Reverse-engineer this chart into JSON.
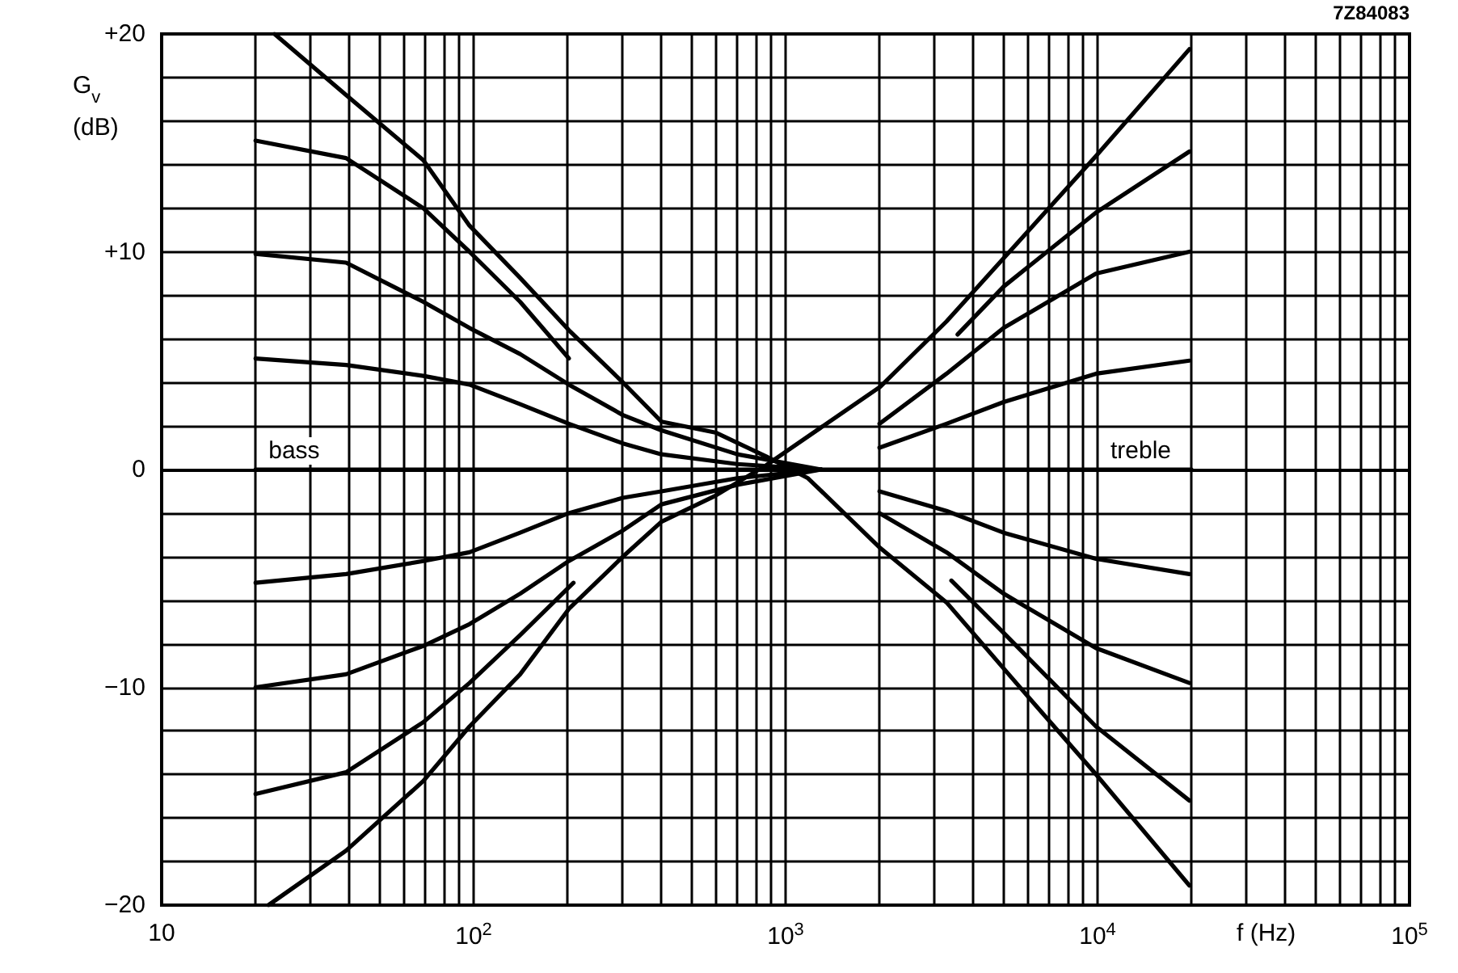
{
  "chart_data": {
    "type": "line",
    "xlabel": "f (Hz)",
    "ylabel": "G$_{v}$ (dB)",
    "annotations": [
      {
        "text": "bass",
        "x": 20,
        "y": 0
      },
      {
        "text": "treble",
        "x": 10000,
        "y": 0
      },
      "7Z84083"
    ],
    "log": "x",
    "grid": true,
    "marker": "none",
    "line_style": "solid",
    "xlim": [
      10,
      100000
    ],
    "ylim": [
      -20,
      20
    ],
    "xticks": [
      {
        "value": 10,
        "label": "10"
      },
      {
        "value": 20,
        "label": null
      },
      {
        "value": 30,
        "label": null
      },
      {
        "value": 40,
        "label": null
      },
      {
        "value": 50,
        "label": null
      },
      {
        "value": 60,
        "label": null
      },
      {
        "value": 70,
        "label": null
      },
      {
        "value": 80,
        "label": null
      },
      {
        "value": 90,
        "label": null
      },
      {
        "value": 100,
        "label": "10$^{2}$"
      },
      {
        "value": 200,
        "label": null
      },
      {
        "value": 300,
        "label": null
      },
      {
        "value": 400,
        "label": null
      },
      {
        "value": 500,
        "label": null
      },
      {
        "value": 600,
        "label": null
      },
      {
        "value": 700,
        "label": null
      },
      {
        "value": 800,
        "label": null
      },
      {
        "value": 900,
        "label": null
      },
      {
        "value": 1000,
        "label": "10$^{3}$"
      },
      {
        "value": 2000,
        "label": null
      },
      {
        "value": 3000,
        "label": null
      },
      {
        "value": 4000,
        "label": null
      },
      {
        "value": 5000,
        "label": null
      },
      {
        "value": 6000,
        "label": null
      },
      {
        "value": 7000,
        "label": null
      },
      {
        "value": 8000,
        "label": null
      },
      {
        "value": 9000,
        "label": null
      },
      {
        "value": 10000,
        "label": "10$^{4}$"
      },
      {
        "value": 20000,
        "label": null
      },
      {
        "value": 30000,
        "label": null
      },
      {
        "value": 40000,
        "label": null
      },
      {
        "value": 50000,
        "label": null
      },
      {
        "value": 60000,
        "label": null
      },
      {
        "value": 70000,
        "label": null
      },
      {
        "value": 80000,
        "label": null
      },
      {
        "value": 90000,
        "label": null
      },
      {
        "value": 100000,
        "label": "10$^{5}$"
      }
    ],
    "yticks": [
      {
        "value": -20,
        "label": "−20"
      },
      {
        "value": -18,
        "label": null
      },
      {
        "value": -16,
        "label": null
      },
      {
        "value": -14,
        "label": null
      },
      {
        "value": -12,
        "label": null
      },
      {
        "value": -10,
        "label": "−10"
      },
      {
        "value": -8,
        "label": null
      },
      {
        "value": -6,
        "label": null
      },
      {
        "value": -4,
        "label": null
      },
      {
        "value": -2,
        "label": null
      },
      0,
      {
        "value": 2,
        "label": null
      },
      {
        "value": 4,
        "label": null
      },
      {
        "value": 6,
        "label": null
      },
      {
        "value": 8,
        "label": null
      },
      {
        "value": 10,
        "label": "+10"
      },
      {
        "value": 12,
        "label": null
      },
      {
        "value": 14,
        "label": null
      },
      {
        "value": 16,
        "label": null
      },
      {
        "value": 18,
        "label": null
      },
      {
        "value": 20,
        "label": "+20"
      }
    ],
    "series": [
      {
        "color": "#000000",
        "x": [
          23,
          39,
          69,
          97,
          141,
          202,
          301,
          400,
          596,
          867,
          1180,
          2010,
          3280,
          5800,
          9890,
          19700
        ],
        "values": [
          20,
          17.2,
          14.2,
          11.2,
          8.8,
          6.4,
          4,
          2.2,
          1.7,
          0.6,
          -0.4,
          -3.6,
          -6.1,
          -10.2,
          -14,
          -19.1
        ]
      },
      {
        "color": "#000000",
        "x": [
          22,
          39,
          69,
          97,
          141,
          202,
          301,
          400,
          596,
          867,
          2010,
          3280,
          9890,
          19700
        ],
        "values": [
          -20,
          -17.5,
          -14.3,
          -11.8,
          -9.4,
          -6.4,
          -4,
          -2.4,
          -1.2,
          0.2,
          3.8,
          6.8,
          14.4,
          19.3
        ]
      },
      {
        "color": "#000000",
        "x": [
          20,
          39,
          69,
          97,
          141,
          202
        ],
        "values": [
          15.1,
          14.3,
          12,
          10,
          7.7,
          5.1
        ]
      },
      {
        "color": "#000000",
        "x": [
          20,
          39,
          69,
          97,
          141,
          209
        ],
        "values": [
          -14.9,
          -13.9,
          -11.6,
          -9.8,
          -7.6,
          -5.2
        ]
      },
      {
        "color": "#000000",
        "x": [
          20,
          39,
          69,
          97,
          141,
          202,
          301,
          400,
          700,
          1300
        ],
        "values": [
          9.9,
          9.5,
          7.7,
          6.5,
          5.3,
          3.9,
          2.5,
          1.8,
          0.7,
          0
        ]
      },
      {
        "color": "#000000",
        "x": [
          20,
          39,
          69,
          97,
          141,
          202,
          301,
          400,
          700,
          1300
        ],
        "values": [
          5.1,
          4.8,
          4.3,
          3.9,
          3,
          2.1,
          1.2,
          0.7,
          0.25,
          0
        ]
      },
      {
        "color": "#000000",
        "x": [
          20,
          39,
          69,
          97,
          141,
          202,
          301,
          400,
          700,
          1300
        ],
        "values": [
          -5.2,
          -4.8,
          -4.2,
          -3.8,
          -2.9,
          -2,
          -1.3,
          -1,
          -0.4,
          0
        ]
      },
      {
        "color": "#000000",
        "x": [
          20,
          39,
          69,
          97,
          141,
          202,
          301,
          400,
          700,
          1300
        ],
        "values": [
          -10,
          -9.4,
          -8.1,
          -7.1,
          -5.7,
          -4.2,
          -2.8,
          -1.6,
          -0.7,
          0
        ]
      },
      {
        "color": "#000000",
        "x": [
          20,
          20000
        ],
        "values": [
          0,
          0
        ]
      },
      {
        "color": "#000000",
        "x": [
          3560,
          5000,
          9890,
          19700
        ],
        "values": [
          6.2,
          8.4,
          11.8,
          14.6
        ]
      },
      {
        "color": "#000000",
        "x": [
          3400,
          5000,
          9890,
          19700
        ],
        "values": [
          -5.1,
          -7.5,
          -11.8,
          -15.2
        ]
      },
      {
        "color": "#000000",
        "x": [
          2000,
          3280,
          5000,
          9890,
          19700
        ],
        "values": [
          2.1,
          4.4,
          6.5,
          9,
          10
        ]
      },
      {
        "color": "#000000",
        "x": [
          2000,
          3280,
          5000,
          9890,
          19700
        ],
        "values": [
          1,
          2.1,
          3.1,
          4.4,
          5
        ]
      },
      {
        "color": "#000000",
        "x": [
          2000,
          3280,
          5000,
          9890,
          19700
        ],
        "values": [
          -1,
          -1.9,
          -2.9,
          -4.1,
          -4.8
        ]
      },
      {
        "color": "#000000",
        "x": [
          2000,
          3280,
          5000,
          9890,
          19700
        ],
        "values": [
          -2,
          -3.8,
          -5.7,
          -8.2,
          -9.8
        ]
      }
    ]
  }
}
